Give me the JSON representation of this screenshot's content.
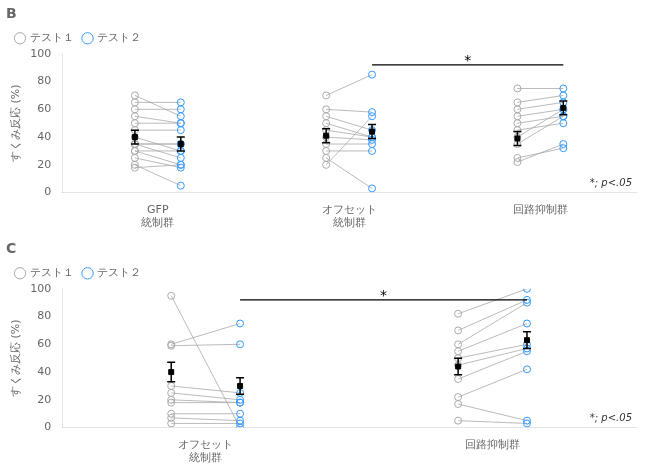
{
  "chart_data": [
    {
      "type": "scatter",
      "title": "B",
      "categories": [
        "GFP\n統制群",
        "オフセット\n統制群",
        "回路抑制群"
      ],
      "y_label": "すくみ反応 (%)",
      "ylim": [
        0,
        100
      ],
      "yticks": [
        0,
        20,
        40,
        60,
        80,
        100
      ],
      "grid": false,
      "legend": "upper left",
      "series": [
        {
          "name": "テスト１",
          "color": "#aaaaaa",
          "marker": "circle",
          "values": [
            [
              35,
              60,
              55,
              50,
              45,
              40,
              35,
              30,
              25,
              20,
              18,
              65,
              70,
              30,
              35
            ],
            [
              60,
              55,
              45,
              40,
              35,
              30,
              25,
              20,
              70,
              50
            ],
            [
              75,
              65,
              60,
              55,
              50,
              45,
              40,
              35,
              25,
              22
            ]
          ],
          "means": [
            40,
            41,
            39
          ],
          "errors": [
            5,
            5,
            5
          ]
        },
        {
          "name": "テスト２",
          "color": "#3399ff",
          "marker": "circle",
          "values": [
            [
              35,
              60,
              50,
              50,
              45,
              30,
              25,
              20,
              18,
              5,
              20,
              65,
              55,
              30,
              35
            ],
            [
              58,
              45,
              40,
              38,
              35,
              30,
              3,
              55,
              85,
              40
            ],
            [
              75,
              70,
              65,
              60,
              55,
              50,
              60,
              55,
              32,
              35
            ]
          ],
          "means": [
            35,
            44,
            61
          ],
          "errors": [
            5,
            5,
            5
          ]
        }
      ],
      "annotations": [
        {
          "text": "*",
          "between": [
            1,
            2
          ],
          "y": 92
        },
        {
          "text": "*; p<.05"
        }
      ]
    },
    {
      "type": "scatter",
      "title": "C",
      "categories": [
        "オフセット\n統制群",
        "回路抑制群"
      ],
      "y_label": "すくみ反応 (%)",
      "ylim": [
        0,
        100
      ],
      "yticks": [
        0,
        20,
        40,
        60,
        80,
        100
      ],
      "grid": false,
      "legend": "upper left",
      "series": [
        {
          "name": "テスト１",
          "color": "#aaaaaa",
          "marker": "circle",
          "values": [
            [
              60,
              59,
              30,
              25,
              20,
              18,
              10,
              7,
              3,
              95
            ],
            [
              82,
              70,
              60,
              55,
              50,
              45,
              35,
              22,
              17,
              5
            ]
          ],
          "means": [
            40,
            44
          ],
          "errors": [
            7,
            6
          ]
        },
        {
          "name": "テスト２",
          "color": "#3399ff",
          "marker": "circle",
          "values": [
            [
              75,
              60,
              25,
              20,
              18,
              18,
              10,
              5,
              3,
              0
            ],
            [
              100,
              92,
              90,
              75,
              60,
              57,
              55,
              42,
              5,
              3
            ]
          ],
          "means": [
            30,
            63
          ],
          "errors": [
            6,
            6
          ]
        }
      ],
      "annotations": [
        {
          "text": "*",
          "between": [
            0,
            1
          ],
          "y": 92
        },
        {
          "text": "*; p<.05"
        }
      ]
    }
  ]
}
